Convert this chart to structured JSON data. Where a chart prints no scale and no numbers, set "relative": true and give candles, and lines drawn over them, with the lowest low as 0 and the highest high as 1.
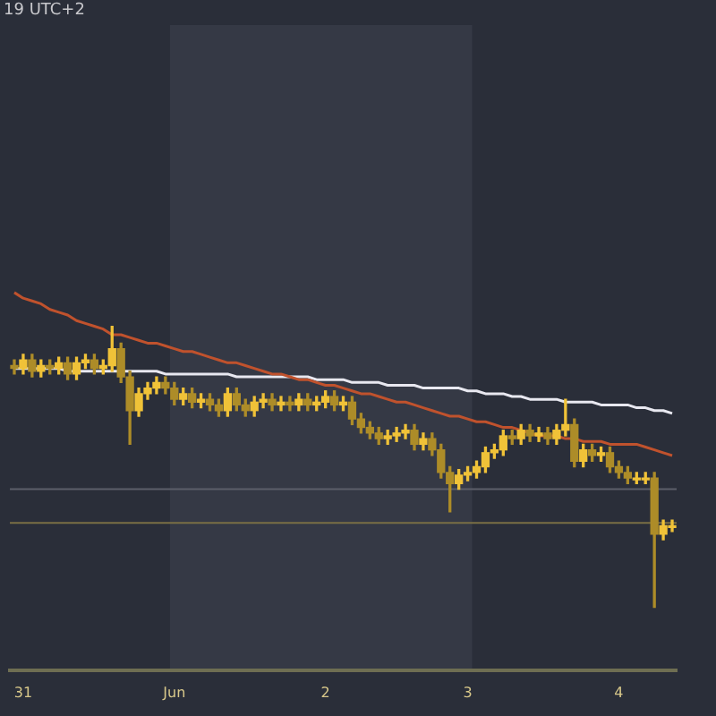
{
  "chart_data": {
    "type": "candlestick",
    "relative": true,
    "tick_labels": "x",
    "colors": [
      "#ad8c28",
      "#f0c238",
      "#ad8c28",
      "#f0c238",
      "#ad8c28",
      "#f0c238",
      "#ad8c28",
      "#f0c238",
      "#f0c238",
      "#ad8c28",
      "#f0c238",
      "#f0c238",
      "#ad8c28",
      "#ad8c28",
      "#f0c238",
      "#f0c238",
      "#f0c238",
      "#ad8c28",
      "#ad8c28",
      "#f0c238",
      "#ad8c28",
      "#f0c238",
      "#ad8c28",
      "#ad8c28",
      "#f0c238",
      "#ad8c28",
      "#ad8c28",
      "#f0c238",
      "#f0c238",
      "#ad8c28",
      "#f0c238",
      "#ad8c28",
      "#f0c238",
      "#ad8c28",
      "#f0c238",
      "#f0c238",
      "#ad8c28",
      "#f0c238",
      "#ad8c28",
      "#ad8c28",
      "#ad8c28",
      "#ad8c28",
      "#f0c238",
      "#f0c238",
      "#f0c238",
      "#ad8c28",
      "#f0c238",
      "#ad8c28",
      "#ad8c28",
      "#ad8c28",
      "#f0c238",
      "#f0c238",
      "#f0c238",
      "#f0c238",
      "#f0c238",
      "#f0c238",
      "#ad8c28",
      "#f0c238",
      "#ad8c28",
      "#f0c238",
      "#ad8c28",
      "#f0c238",
      "#f0c238",
      "#ad8c28",
      "#f0c238",
      "#ad8c28",
      "#f0c238",
      "#ad8c28",
      "#ad8c28",
      "#ad8c28",
      "#f0c238",
      "#f0c238",
      "#ad8c28",
      "#f0c238",
      "#f0c238"
    ],
    "annotations": [
      "19 UTC+2"
    ],
    "categories": [
      null,
      "31",
      null,
      null,
      null,
      null,
      null,
      null,
      null,
      null,
      null,
      null,
      null,
      null,
      null,
      null,
      null,
      null,
      "Jun",
      null,
      null,
      null,
      null,
      null,
      null,
      null,
      null,
      null,
      null,
      null,
      null,
      null,
      null,
      null,
      null,
      "2",
      null,
      null,
      null,
      null,
      null,
      null,
      null,
      null,
      null,
      null,
      null,
      null,
      null,
      null,
      null,
      "3",
      null,
      null,
      null,
      null,
      null,
      null,
      null,
      null,
      null,
      null,
      null,
      null,
      null,
      null,
      null,
      null,
      "4",
      null,
      null,
      null,
      null,
      null,
      null
    ],
    "ohlc": [
      [
        0.86,
        0.88,
        0.83,
        0.85
      ],
      [
        0.85,
        0.9,
        0.83,
        0.88
      ],
      [
        0.88,
        0.9,
        0.82,
        0.84
      ],
      [
        0.84,
        0.88,
        0.82,
        0.86
      ],
      [
        0.86,
        0.88,
        0.83,
        0.85
      ],
      [
        0.85,
        0.89,
        0.83,
        0.87
      ],
      [
        0.87,
        0.89,
        0.81,
        0.83
      ],
      [
        0.83,
        0.89,
        0.81,
        0.87
      ],
      [
        0.87,
        0.9,
        0.85,
        0.88
      ],
      [
        0.88,
        0.9,
        0.83,
        0.85
      ],
      [
        0.85,
        0.88,
        0.83,
        0.86
      ],
      [
        0.86,
        1,
        0.84,
        0.92
      ],
      [
        0.92,
        0.94,
        0.8,
        0.82
      ],
      [
        0.82,
        0.84,
        0.58,
        0.7
      ],
      [
        0.7,
        0.78,
        0.68,
        0.76
      ],
      [
        0.76,
        0.8,
        0.74,
        0.78
      ],
      [
        0.78,
        0.82,
        0.76,
        0.8
      ],
      [
        0.8,
        0.82,
        0.76,
        0.78
      ],
      [
        0.78,
        0.8,
        0.72,
        0.74
      ],
      [
        0.74,
        0.78,
        0.72,
        0.76
      ],
      [
        0.76,
        0.78,
        0.71,
        0.73
      ],
      [
        0.73,
        0.76,
        0.71,
        0.74
      ],
      [
        0.74,
        0.76,
        0.7,
        0.72
      ],
      [
        0.72,
        0.74,
        0.68,
        0.7
      ],
      [
        0.7,
        0.78,
        0.68,
        0.76
      ],
      [
        0.76,
        0.78,
        0.7,
        0.72
      ],
      [
        0.72,
        0.74,
        0.68,
        0.7
      ],
      [
        0.7,
        0.75,
        0.68,
        0.73
      ],
      [
        0.73,
        0.76,
        0.71,
        0.74
      ],
      [
        0.74,
        0.76,
        0.7,
        0.72
      ],
      [
        0.72,
        0.75,
        0.7,
        0.73
      ],
      [
        0.73,
        0.75,
        0.7,
        0.72
      ],
      [
        0.72,
        0.76,
        0.7,
        0.74
      ],
      [
        0.74,
        0.76,
        0.7,
        0.72
      ],
      [
        0.72,
        0.75,
        0.7,
        0.73
      ],
      [
        0.73,
        0.77,
        0.71,
        0.75
      ],
      [
        0.75,
        0.77,
        0.7,
        0.72
      ],
      [
        0.72,
        0.75,
        0.7,
        0.73
      ],
      [
        0.73,
        0.75,
        0.65,
        0.67
      ],
      [
        0.67,
        0.69,
        0.62,
        0.64
      ],
      [
        0.64,
        0.66,
        0.6,
        0.62
      ],
      [
        0.62,
        0.64,
        0.58,
        0.6
      ],
      [
        0.6,
        0.63,
        0.58,
        0.61
      ],
      [
        0.61,
        0.64,
        0.59,
        0.62
      ],
      [
        0.62,
        0.65,
        0.6,
        0.63
      ],
      [
        0.63,
        0.65,
        0.56,
        0.58
      ],
      [
        0.58,
        0.62,
        0.56,
        0.6
      ],
      [
        0.6,
        0.62,
        0.54,
        0.56
      ],
      [
        0.56,
        0.58,
        0.46,
        0.48
      ],
      [
        0.48,
        0.5,
        0.34,
        0.44
      ],
      [
        0.44,
        0.49,
        0.42,
        0.47
      ],
      [
        0.47,
        0.5,
        0.45,
        0.48
      ],
      [
        0.48,
        0.52,
        0.46,
        0.5
      ],
      [
        0.5,
        0.57,
        0.48,
        0.55
      ],
      [
        0.55,
        0.58,
        0.53,
        0.56
      ],
      [
        0.56,
        0.63,
        0.54,
        0.61
      ],
      [
        0.61,
        0.63,
        0.58,
        0.6
      ],
      [
        0.6,
        0.65,
        0.58,
        0.63
      ],
      [
        0.63,
        0.65,
        0.59,
        0.61
      ],
      [
        0.61,
        0.64,
        0.59,
        0.62
      ],
      [
        0.62,
        0.64,
        0.58,
        0.6
      ],
      [
        0.6,
        0.65,
        0.58,
        0.63
      ],
      [
        0.63,
        0.74,
        0.61,
        0.65
      ],
      [
        0.65,
        0.67,
        0.5,
        0.52
      ],
      [
        0.52,
        0.58,
        0.5,
        0.56
      ],
      [
        0.56,
        0.58,
        0.52,
        0.54
      ],
      [
        0.54,
        0.57,
        0.52,
        0.55
      ],
      [
        0.55,
        0.57,
        0.48,
        0.5
      ],
      [
        0.5,
        0.52,
        0.46,
        0.48
      ],
      [
        0.48,
        0.5,
        0.44,
        0.46
      ],
      [
        0.46,
        0.48,
        0.44,
        0.46
      ],
      [
        0.46,
        0.48,
        0.44,
        0.46
      ],
      [
        0.46,
        0.48,
        0,
        0.26
      ],
      [
        0.26,
        0.31,
        0.24,
        0.29
      ],
      [
        0.29,
        0.31,
        0.27,
        0.29
      ]
    ],
    "series": [
      {
        "type": "line",
        "color": "#c0522d",
        "values": [
          1.12,
          1.1,
          1.09,
          1.08,
          1.06,
          1.05,
          1.04,
          1.02,
          1.01,
          1,
          0.99,
          0.97,
          0.97,
          0.96,
          0.95,
          0.94,
          0.94,
          0.93,
          0.92,
          0.91,
          0.91,
          0.9,
          0.89,
          0.88,
          0.87,
          0.87,
          0.86,
          0.85,
          0.84,
          0.83,
          0.83,
          0.82,
          0.81,
          0.81,
          0.8,
          0.79,
          0.79,
          0.78,
          0.77,
          0.76,
          0.76,
          0.75,
          0.74,
          0.73,
          0.73,
          0.72,
          0.71,
          0.7,
          0.69,
          0.68,
          0.68,
          0.67,
          0.66,
          0.66,
          0.65,
          0.64,
          0.64,
          0.63,
          0.62,
          0.61,
          0.61,
          0.61,
          0.6,
          0.6,
          0.59,
          0.59,
          0.59,
          0.58,
          0.58,
          0.58,
          0.58,
          0.57,
          0.56,
          0.55,
          0.54
        ]
      },
      {
        "type": "line",
        "color": "#e8e8f0",
        "values": [
          0.85,
          0.85,
          0.85,
          0.85,
          0.85,
          0.85,
          0.84,
          0.84,
          0.84,
          0.84,
          0.84,
          0.84,
          0.84,
          0.84,
          0.84,
          0.84,
          0.84,
          0.83,
          0.83,
          0.83,
          0.83,
          0.83,
          0.83,
          0.83,
          0.83,
          0.82,
          0.82,
          0.82,
          0.82,
          0.82,
          0.82,
          0.82,
          0.82,
          0.82,
          0.81,
          0.81,
          0.81,
          0.81,
          0.8,
          0.8,
          0.8,
          0.8,
          0.79,
          0.79,
          0.79,
          0.79,
          0.78,
          0.78,
          0.78,
          0.78,
          0.78,
          0.77,
          0.77,
          0.76,
          0.76,
          0.76,
          0.75,
          0.75,
          0.74,
          0.74,
          0.74,
          0.74,
          0.73,
          0.73,
          0.73,
          0.73,
          0.72,
          0.72,
          0.72,
          0.72,
          0.71,
          0.71,
          0.7,
          0.7,
          0.69
        ]
      }
    ],
    "bands": [
      {
        "axis": "x",
        "from": "Jun",
        "to": "3",
        "color": "#353945"
      }
    ],
    "ref_lines": [
      {
        "axis": "y",
        "value": 0.42,
        "color": "#5c5f6a"
      },
      {
        "axis": "y",
        "value": 0.3,
        "color": "#7a6f45"
      }
    ]
  }
}
